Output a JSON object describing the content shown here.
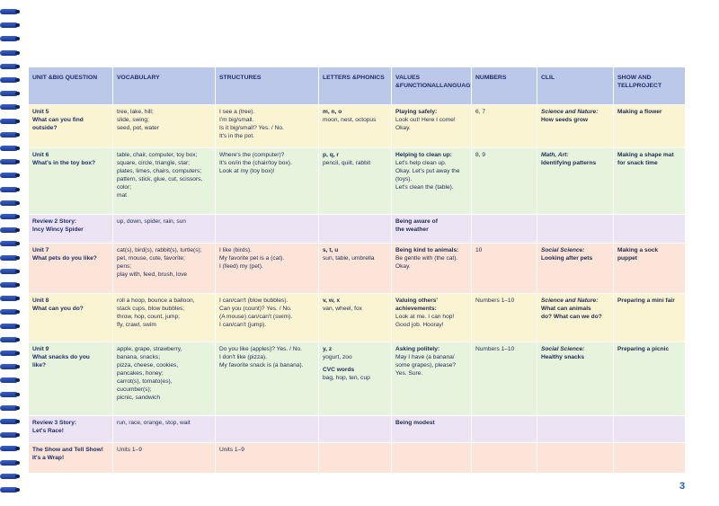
{
  "page_number": "3",
  "headers": {
    "unit": [
      "UNIT &",
      "BIG QUESTION"
    ],
    "vocabulary": [
      "VOCABULARY"
    ],
    "structures": [
      "STRUCTURES"
    ],
    "letters": [
      "LETTERS &",
      "PHONICS"
    ],
    "values": [
      "VALUES &",
      "FUNCTIONAL",
      "LANGUAGE"
    ],
    "numbers": [
      "NUMBERS"
    ],
    "clil": [
      "CLIL"
    ],
    "project": [
      "SHOW AND TELL",
      "PROJECT"
    ]
  },
  "rows": [
    {
      "color": "yellow",
      "unit": [
        "Unit 5",
        "What can you find",
        "outside?"
      ],
      "vocabulary": [
        "tree, lake, hill;",
        "slide, swing;",
        "seed, pot, water"
      ],
      "structures": [
        "I see a (tree).",
        "I'm big/small.",
        "Is it big/small? Yes. / No.",
        "It's in the pot."
      ],
      "letters_bold": [
        "m, n, o"
      ],
      "letters": [
        "moon, nest, octopus"
      ],
      "values_bold": [
        "Playing safely:"
      ],
      "values": [
        "Look out! Here I come!",
        "Okay."
      ],
      "numbers": [
        "6, 7"
      ],
      "clil_italic": "Science and Nature:",
      "clil_bold": [
        "How seeds grow"
      ],
      "project": [
        "Making a flower"
      ]
    },
    {
      "color": "green",
      "unit": [
        "Unit 6",
        "What's in the toy box?"
      ],
      "vocabulary": [
        "table, chair, computer, toy box;",
        "square, circle, triangle, star;",
        "plates, limes, chairs, computers;",
        "pattern, stick, glue, cut, scissors,",
        "color;",
        "mat"
      ],
      "structures": [
        "Where's the (computer)?",
        "It's on/in the (chair/toy box).",
        "Look at my (toy box)!"
      ],
      "letters_bold": [
        "p, q, r"
      ],
      "letters": [
        "pencil, quilt, rabbit"
      ],
      "values_bold": [
        "Helping to clean up:"
      ],
      "values": [
        "Let's help clean up.",
        "Okay. Let's put away the",
        "(toys).",
        "Let's clean the (table)."
      ],
      "numbers": [
        "8, 9"
      ],
      "clil_italic": "Math, Art:",
      "clil_bold": [
        "Identifying patterns"
      ],
      "project": [
        "Making a shape mat",
        "for snack time"
      ]
    },
    {
      "color": "purple",
      "unit": [
        "Review 2 Story:",
        "Incy Wincy Spider"
      ],
      "vocabulary": [
        "up, down, spider, rain, sun"
      ],
      "structures": [],
      "letters_bold": [],
      "letters": [],
      "values_bold": [
        "Being aware of",
        "the weather"
      ],
      "values": [],
      "numbers": [],
      "clil_italic": "",
      "clil_bold": [],
      "project": []
    },
    {
      "color": "orange",
      "unit": [
        "Unit 7",
        "What pets do you like?"
      ],
      "vocabulary": [
        "cat(s), bird(s), rabbit(s), turtle(s);",
        "pet, mouse, cute, favorite;",
        "pens;",
        "play with, feed, brush, love"
      ],
      "structures": [
        "I like (birds).",
        "My favorite pet is a (cat).",
        "I (feed) my (pet)."
      ],
      "letters_bold": [
        "s, t, u"
      ],
      "letters": [
        "sun, table, umbrella"
      ],
      "values_bold": [
        "Being kind to animals:"
      ],
      "values": [
        "Be gentle with (the cat).",
        "Okay."
      ],
      "numbers": [
        "10"
      ],
      "clil_italic": "Social Science:",
      "clil_bold": [
        "Looking after pets"
      ],
      "project": [
        "Making a sock",
        "puppet"
      ]
    },
    {
      "color": "yellow",
      "unit": [
        "Unit 8",
        "What can you do?"
      ],
      "vocabulary": [
        "roll a hoop, bounce a balloon,",
        "stack cups, blow bubbles;",
        "throw, hop, count, jump;",
        "fly, crawl, swim"
      ],
      "structures": [
        "I can/can't (blow bubbles).",
        "Can you (count)? Yes. / No.",
        "(A mouse) can/can't (swim).",
        "I can/can't (jump)."
      ],
      "letters_bold": [
        "v, w, x"
      ],
      "letters": [
        "van, wheel, fox"
      ],
      "values_bold": [
        "Valuing others'",
        "achievements:"
      ],
      "values": [
        "Look at me. I can hop!",
        "Good job. Hooray!"
      ],
      "numbers": [
        "Numbers 1–10"
      ],
      "clil_italic": "Science and Nature:",
      "clil_bold": [
        "What can animals",
        "do? What can we do?"
      ],
      "project": [
        "Preparing a mini fair"
      ]
    },
    {
      "color": "green",
      "unit": [
        "Unit 9",
        "What snacks do you",
        "like?"
      ],
      "vocabulary": [
        "apple, grape, strawberry,",
        "banana, snacks;",
        "pizza, cheese, cookies,",
        "pancakes, honey;",
        "carrot(s), tomato(es),",
        "cucumber(s);",
        "picnic, sandwich"
      ],
      "structures": [
        "Do you like (apples)? Yes. / No.",
        "I don't like (pizza).",
        "My favorite snack is (a banana)."
      ],
      "letters_bold": [
        "y, z"
      ],
      "letters": [
        "yogurt, zoo"
      ],
      "letters_bold2": [
        "CVC words"
      ],
      "letters2": [
        "bag, hop, ten, cup"
      ],
      "values_bold": [
        "Asking politely:"
      ],
      "values": [
        "May I have (a banana/",
        "some grapes), please?",
        "Yes. Sure."
      ],
      "numbers": [
        "Numbers 1–10"
      ],
      "clil_italic": "Social Science:",
      "clil_bold": [
        "Healthy snacks"
      ],
      "project": [
        "Preparing a picnic"
      ]
    },
    {
      "color": "purple",
      "unit": [
        "Review 3 Story:",
        "Let's Race!"
      ],
      "vocabulary": [
        "run, race, orange, stop, wait"
      ],
      "structures": [],
      "letters_bold": [],
      "letters": [],
      "values_bold": [
        "Being modest"
      ],
      "values": [],
      "numbers": [],
      "clil_italic": "",
      "clil_bold": [],
      "project": []
    },
    {
      "color": "orange",
      "unit": [
        "The Show and Tell Show!",
        "It's a Wrap!"
      ],
      "vocabulary": [
        "Units 1–9"
      ],
      "structures": [
        "Units 1–9"
      ],
      "letters_bold": [],
      "letters": [],
      "values_bold": [],
      "values": [],
      "numbers": [],
      "clil_italic": "",
      "clil_bold": [],
      "project": []
    }
  ]
}
